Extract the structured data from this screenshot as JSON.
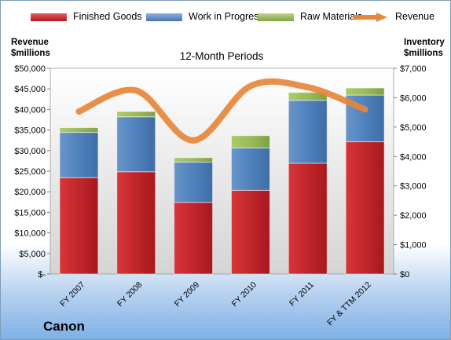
{
  "chart_data": {
    "type": "bar",
    "title": "12-Month Periods",
    "company": "Canon",
    "left_axis_label": [
      "Revenue",
      "$millions"
    ],
    "right_axis_label": [
      "Inventory",
      "$millions"
    ],
    "categories": [
      "FY 2007",
      "FY 2008",
      "FY 2009",
      "FY 2010",
      "FY 2011",
      "FY & TTM 2012"
    ],
    "left_ticks": [
      "$-",
      "$5,000",
      "$10,000",
      "$15,000",
      "$20,000",
      "$25,000",
      "$30,000",
      "$35,000",
      "$40,000",
      "$45,000",
      "$50,000"
    ],
    "right_ticks": [
      "$0",
      "$1,000",
      "$2,000",
      "$3,000",
      "$4,000",
      "$5,000",
      "$6,000",
      "$7,000"
    ],
    "ylim_left": [
      0,
      50000
    ],
    "ylim_right": [
      0,
      7000
    ],
    "stacked": true,
    "series": [
      {
        "name": "Finished Goods",
        "axis": "right",
        "color": "#c0262b",
        "values": [
          3280,
          3480,
          2440,
          2850,
          3770,
          4500
        ]
      },
      {
        "name": "Work in Progress",
        "axis": "right",
        "color": "#4f81bd",
        "values": [
          1540,
          1870,
          1370,
          1440,
          2140,
          1590
        ]
      },
      {
        "name": "Raw Materials",
        "axis": "right",
        "color": "#9bbb59",
        "values": [
          160,
          180,
          150,
          420,
          270,
          240
        ]
      },
      {
        "name": "Revenue",
        "axis": "left",
        "type": "line",
        "color": "#e6873a",
        "values": [
          39500,
          44600,
          32500,
          45700,
          45400,
          40000
        ]
      }
    ],
    "grid": false,
    "legend_position": "top"
  }
}
